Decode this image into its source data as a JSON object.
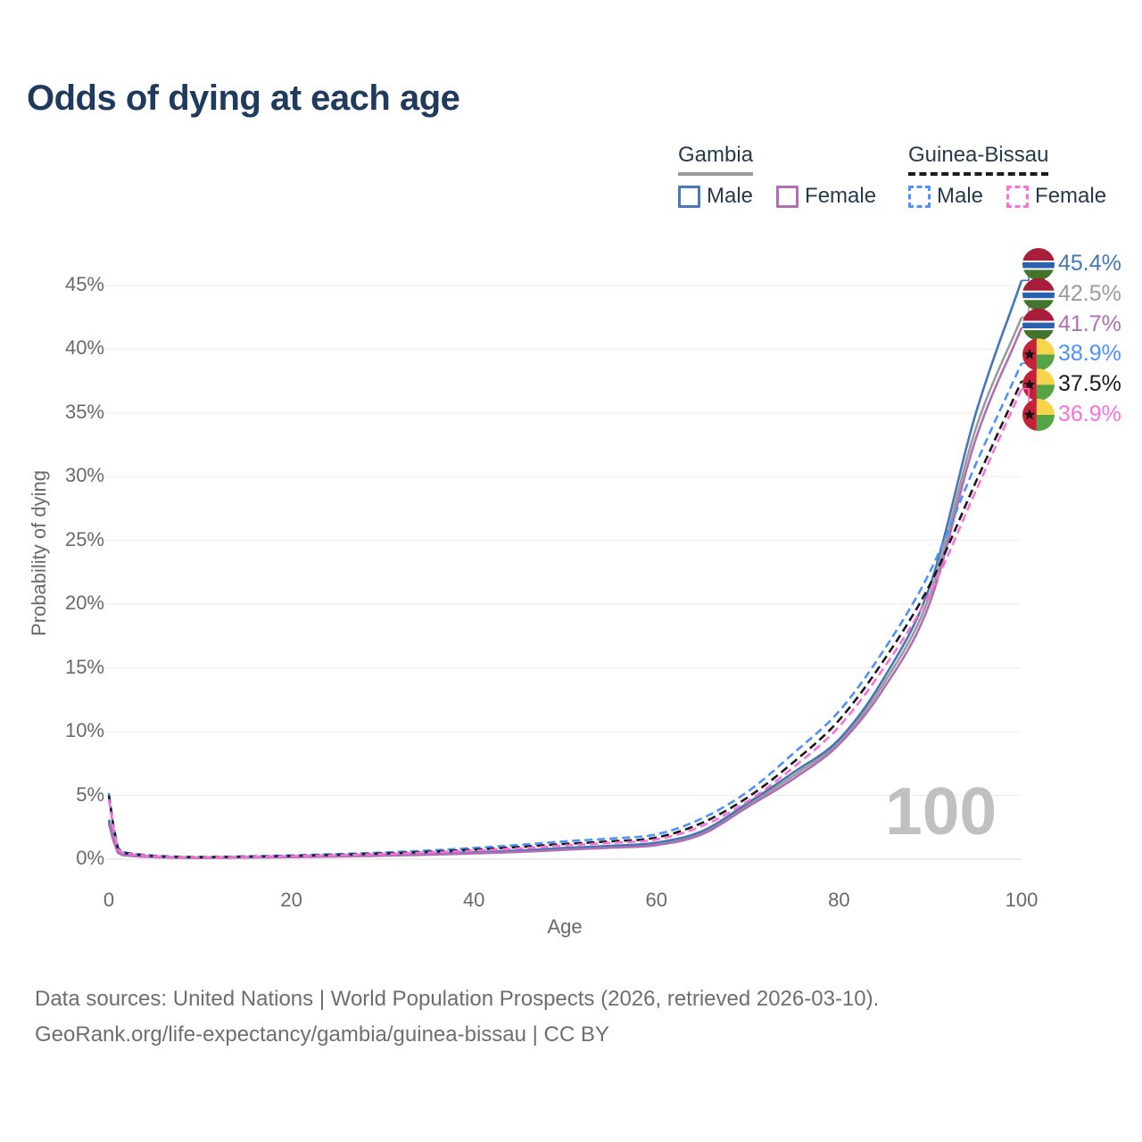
{
  "title": "Odds of dying at each age",
  "watermark": "100",
  "footer": {
    "line1": "Data sources: United Nations | World Population Prospects (2026, retrieved 2026-03-10).",
    "line2": "GeoRank.org/life-expectancy/gambia/guinea-bissau | CC BY"
  },
  "legend": {
    "groups": [
      {
        "label": "Gambia",
        "underline_style": "solid",
        "underline_color": "#9b9b9b",
        "items": [
          {
            "label": "Male",
            "color": "#4a79b8",
            "dashed": false
          },
          {
            "label": "Female",
            "color": "#b06fb4",
            "dashed": false
          }
        ]
      },
      {
        "label": "Guinea-Bissau",
        "underline_style": "dashed",
        "underline_color": "#1b1b1b",
        "items": [
          {
            "label": "Male",
            "color": "#4d92fa",
            "dashed": true
          },
          {
            "label": "Female",
            "color": "#fa70d8",
            "dashed": true
          }
        ]
      }
    ]
  },
  "chart_data": {
    "type": "line",
    "title": "Odds of dying at each age",
    "xlabel": "Age",
    "ylabel": "Probability of dying",
    "xlim": [
      0,
      100
    ],
    "ylim": [
      0,
      46
    ],
    "grid": "horizontal",
    "x_tick_values": [
      0,
      20,
      40,
      60,
      80,
      100
    ],
    "x_tick_labels": [
      "0",
      "20",
      "40",
      "60",
      "80",
      "100"
    ],
    "y_tick_values": [
      0,
      5,
      10,
      15,
      20,
      25,
      30,
      35,
      40,
      45
    ],
    "y_tick_labels": [
      "0%",
      "5%",
      "10%",
      "15%",
      "20%",
      "25%",
      "30%",
      "35%",
      "40%",
      "45%"
    ],
    "ages": [
      0,
      1,
      2,
      5,
      10,
      15,
      20,
      25,
      30,
      35,
      40,
      45,
      50,
      55,
      60,
      65,
      70,
      75,
      80,
      85,
      90,
      95,
      100
    ],
    "series": [
      {
        "name": "Gambia Male",
        "country": "Gambia",
        "sex": "Male",
        "color": "#4577b6",
        "dash": null,
        "flag": "gambia",
        "end_label": "45.4%",
        "values": [
          3.1,
          0.55,
          0.32,
          0.18,
          0.12,
          0.15,
          0.2,
          0.26,
          0.33,
          0.42,
          0.54,
          0.68,
          0.88,
          1.05,
          1.3,
          2.2,
          4.4,
          6.8,
          9.4,
          14.3,
          21.5,
          35.0,
          45.4
        ]
      },
      {
        "name": "Gambia Both sexes",
        "country": "Gambia",
        "sex": "Both",
        "color": "#9b9b9b",
        "dash": null,
        "flag": "gambia",
        "end_label": "42.5%",
        "values": [
          2.95,
          0.52,
          0.3,
          0.17,
          0.11,
          0.14,
          0.18,
          0.24,
          0.3,
          0.39,
          0.5,
          0.63,
          0.81,
          0.97,
          1.2,
          2.05,
          4.25,
          6.55,
          9.2,
          13.9,
          20.8,
          33.8,
          42.5
        ]
      },
      {
        "name": "Gambia Female",
        "country": "Gambia",
        "sex": "Female",
        "color": "#b06fb4",
        "dash": null,
        "flag": "gambia",
        "end_label": "41.7%",
        "values": [
          2.8,
          0.5,
          0.28,
          0.16,
          0.1,
          0.13,
          0.16,
          0.21,
          0.27,
          0.35,
          0.45,
          0.57,
          0.74,
          0.9,
          1.1,
          1.95,
          4.1,
          6.3,
          9.0,
          13.5,
          20.2,
          33.0,
          41.7
        ]
      },
      {
        "name": "Guinea-Bissau Male",
        "country": "Guinea-Bissau",
        "sex": "Male",
        "color": "#4d92fa",
        "dash": "9 5",
        "flag": "guinea_bissau",
        "end_label": "38.9%",
        "values": [
          5.2,
          0.9,
          0.5,
          0.28,
          0.18,
          0.22,
          0.3,
          0.4,
          0.52,
          0.68,
          0.88,
          1.12,
          1.4,
          1.62,
          1.95,
          3.2,
          5.3,
          8.3,
          11.6,
          16.5,
          22.6,
          31.0,
          38.9
        ]
      },
      {
        "name": "Guinea-Bissau Both sexes",
        "country": "Guinea-Bissau",
        "sex": "Both",
        "color": "#1b1b1b",
        "dash": "9 5",
        "flag": "guinea_bissau",
        "end_label": "37.5%",
        "values": [
          5.0,
          0.82,
          0.46,
          0.25,
          0.16,
          0.2,
          0.26,
          0.35,
          0.45,
          0.58,
          0.75,
          0.95,
          1.2,
          1.4,
          1.7,
          2.85,
          4.85,
          7.6,
          10.9,
          15.7,
          21.6,
          29.6,
          37.5
        ]
      },
      {
        "name": "Guinea-Bissau Female",
        "country": "Guinea-Bissau",
        "sex": "Female",
        "color": "#fa70d8",
        "dash": "9 5",
        "flag": "guinea_bissau",
        "end_label": "36.9%",
        "values": [
          4.7,
          0.78,
          0.43,
          0.23,
          0.15,
          0.18,
          0.24,
          0.31,
          0.4,
          0.52,
          0.67,
          0.85,
          1.08,
          1.28,
          1.55,
          2.6,
          4.55,
          7.2,
          10.4,
          15.1,
          20.9,
          28.9,
          36.9
        ]
      }
    ]
  }
}
